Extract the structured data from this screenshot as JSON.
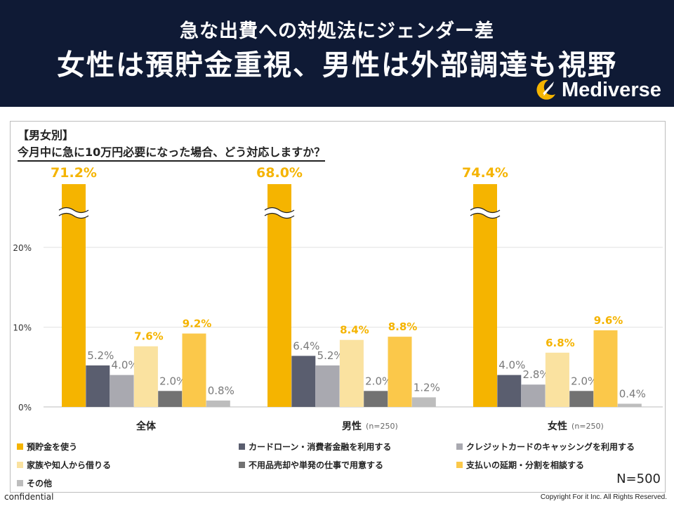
{
  "header": {
    "subtitle": "急な出費への対処法にジェンダー差",
    "title": "女性は預貯金重視、男性は外部調達も視野",
    "logo_text": "Mediverse"
  },
  "panel": {
    "section": "【男女別】",
    "question": "今月中に急に10万円必要になった場合、どう対応しますか？",
    "n_label": "N=500"
  },
  "footer": {
    "left": "confidential",
    "right": "Copyright For it Inc. All Rights Reserved."
  },
  "chart_data": {
    "type": "bar",
    "ylim": [
      0,
      20
    ],
    "y_ticks": [
      "0%",
      "10%",
      "20%"
    ],
    "grid": true,
    "axis_break": true,
    "legend_position": "bottom",
    "categories": [
      {
        "label": "全体",
        "note": ""
      },
      {
        "label": "男性",
        "note": "(n=250)"
      },
      {
        "label": "女性",
        "note": "(n=250)"
      }
    ],
    "series": [
      {
        "name": "預貯金を使う",
        "color": "#f5b400",
        "values": [
          71.2,
          68.0,
          74.4
        ],
        "labels": [
          "71.2%",
          "68.0%",
          "74.4%"
        ],
        "label_color": "#f5b400"
      },
      {
        "name": "カードローン・消費者金融を利用する",
        "color": "#5a5e6f",
        "values": [
          5.2,
          6.4,
          4.0
        ],
        "labels": [
          "5.2%",
          "6.4%",
          "4.0%"
        ],
        "label_color": "#7a7a7a"
      },
      {
        "name": "クレジットカードのキャッシングを利用する",
        "color": "#a9a9b0",
        "values": [
          4.0,
          5.2,
          2.8
        ],
        "labels": [
          "4.0%",
          "5.2%",
          "2.8%"
        ],
        "label_color": "#7a7a7a"
      },
      {
        "name": "家族や知人から借りる",
        "color": "#fae2a0",
        "values": [
          7.6,
          8.4,
          6.8
        ],
        "labels": [
          "7.6%",
          "8.4%",
          "6.8%"
        ],
        "label_color": "#f5b400"
      },
      {
        "name": "不用品売却や単発の仕事で用意する",
        "color": "#727272",
        "values": [
          2.0,
          2.0,
          2.0
        ],
        "labels": [
          "2.0%",
          "2.0%",
          "2.0%"
        ],
        "label_color": "#7a7a7a"
      },
      {
        "name": "支払いの延期・分割を相談する",
        "color": "#fbc84a",
        "values": [
          9.2,
          8.8,
          9.6
        ],
        "labels": [
          "9.2%",
          "8.8%",
          "9.6%"
        ],
        "label_color": "#f5b400"
      },
      {
        "name": "その他",
        "color": "#bdbdbd",
        "values": [
          0.8,
          1.2,
          0.4
        ],
        "labels": [
          "0.8%",
          "1.2%",
          "0.4%"
        ],
        "label_color": "#7a7a7a"
      }
    ]
  }
}
